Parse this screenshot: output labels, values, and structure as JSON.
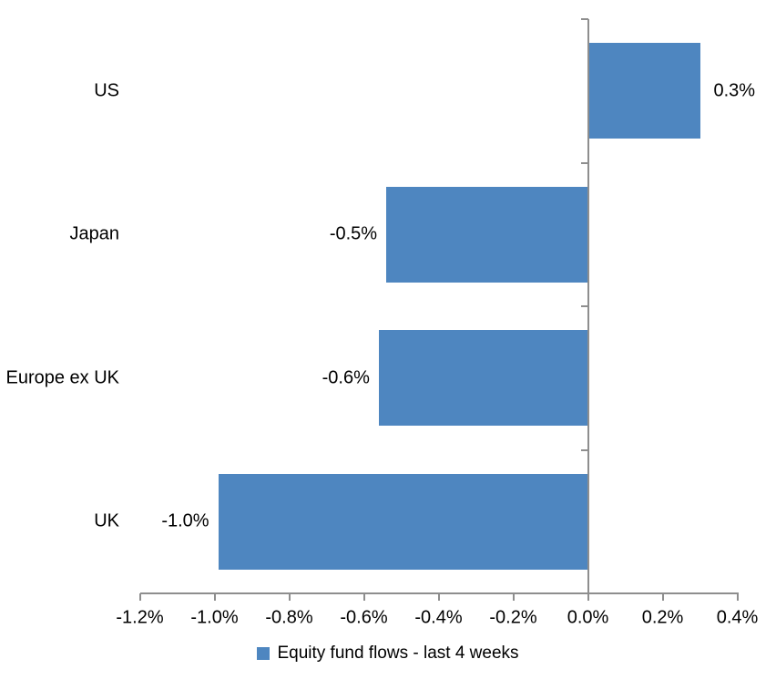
{
  "chart_data": {
    "type": "bar",
    "orientation": "horizontal",
    "title": "",
    "xlabel": "",
    "ylabel": "",
    "categories": [
      "US",
      "Japan",
      "Europe ex UK",
      "UK"
    ],
    "series": [
      {
        "name": "Equity fund flows - last 4 weeks",
        "values": [
          0.3,
          -0.54,
          -0.56,
          -0.99
        ],
        "value_labels": [
          "0.3%",
          "-0.5%",
          "-0.6%",
          "-1.0%"
        ]
      }
    ],
    "xlim": [
      -1.2,
      0.4
    ],
    "x_tick_step": 0.2,
    "x_tick_labels": [
      "-1.2%",
      "-1.0%",
      "-0.8%",
      "-0.6%",
      "-0.4%",
      "-0.2%",
      "0.0%",
      "0.2%",
      "0.4%"
    ],
    "grid": false,
    "legend_position": "bottom",
    "bar_color": "#4e86c0",
    "axis_color": "#8e8e8e",
    "text_color": "#000000"
  }
}
